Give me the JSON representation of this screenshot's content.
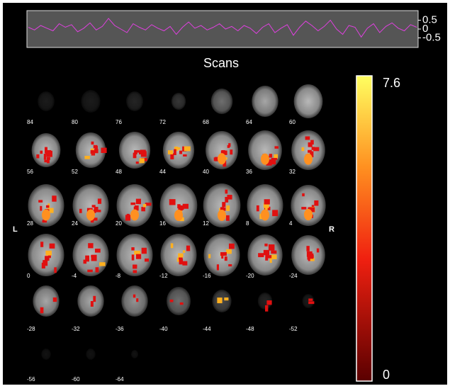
{
  "timecourse": {
    "title": "Scans",
    "ylim": [
      -1,
      1
    ],
    "yticks": [
      0.5,
      0,
      -0.5
    ],
    "color": "#e040e0",
    "values": [
      0.1,
      -0.05,
      0.2,
      0.05,
      -0.1,
      0.3,
      0.1,
      0.25,
      -0.15,
      0.05,
      0.35,
      -0.05,
      0.15,
      0.6,
      0.2,
      0.0,
      -0.2,
      0.3,
      0.1,
      -0.05,
      0.25,
      0.05,
      -0.1,
      0.15,
      -0.3,
      0.1,
      0.4,
      0.05,
      0.2,
      -0.05,
      0.1,
      0.3,
      0.0,
      0.15,
      -0.1,
      0.2,
      0.05,
      -0.25,
      0.1,
      0.3,
      -0.2,
      0.05,
      0.25,
      -0.35,
      0.1,
      0.45,
      0.2,
      -0.1,
      0.15,
      0.5,
      0.0,
      -0.3,
      0.2,
      0.1,
      -0.45,
      0.05,
      0.3,
      -0.2,
      0.15,
      0.35,
      0.05,
      -0.1,
      0.25,
      0.1
    ]
  },
  "sides": {
    "left": "L",
    "right": "R"
  },
  "slices": [
    [
      84,
      80,
      76,
      72,
      68,
      64,
      60
    ],
    [
      56,
      52,
      48,
      44,
      40,
      36,
      32
    ],
    [
      28,
      24,
      20,
      16,
      12,
      8,
      4
    ],
    [
      0,
      -4,
      -8,
      -12,
      -16,
      -20,
      -24
    ],
    [
      -28,
      -32,
      -36,
      -40,
      -44,
      -48,
      -52
    ],
    [
      -56,
      -60,
      -64
    ]
  ],
  "colorbar": {
    "max": 7.6,
    "min": 0
  }
}
